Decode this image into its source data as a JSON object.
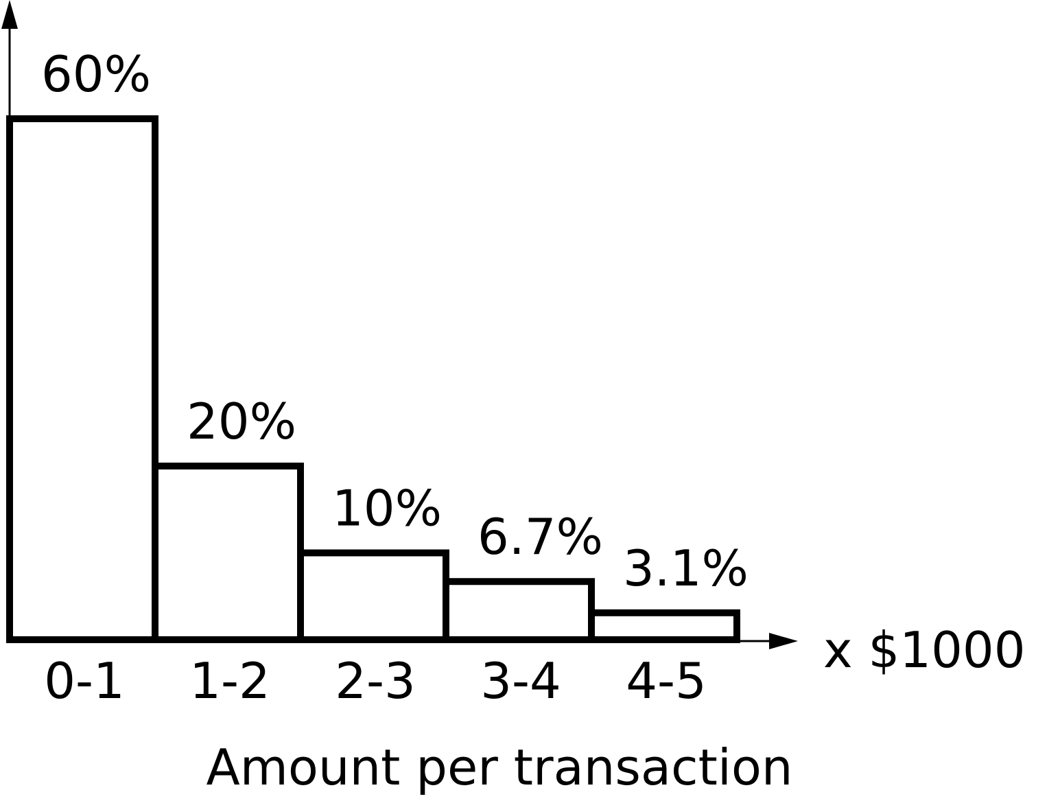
{
  "chart_data": {
    "type": "bar",
    "categories": [
      "0-1",
      "1-2",
      "2-3",
      "3-4",
      "4-5"
    ],
    "values": [
      60,
      20,
      10,
      6.7,
      3.1
    ],
    "data_labels": [
      "60%",
      "20%",
      "10%",
      "6.7%",
      "3.1%"
    ],
    "xlabel": "Amount per transaction",
    "x_unit_label": "x $1000",
    "ylabel": "",
    "title": "",
    "ylim": [
      0,
      60
    ],
    "grid": false,
    "bar_fill": "#ffffff",
    "bar_outline": "#000000"
  }
}
